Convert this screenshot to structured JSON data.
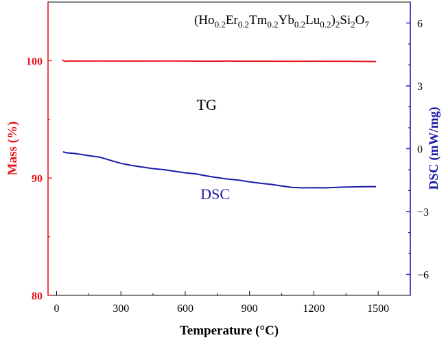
{
  "chart_data": {
    "type": "line",
    "title": "",
    "formula": {
      "parts": [
        {
          "t": "(Ho",
          "s": ""
        },
        {
          "t": "0.2",
          "s": "sub"
        },
        {
          "t": "Er",
          "s": ""
        },
        {
          "t": "0.2",
          "s": "sub"
        },
        {
          "t": "Tm",
          "s": ""
        },
        {
          "t": "0.2",
          "s": "sub"
        },
        {
          "t": "Yb",
          "s": ""
        },
        {
          "t": "0.2",
          "s": "sub"
        },
        {
          "t": "Lu",
          "s": ""
        },
        {
          "t": "0.2",
          "s": "sub"
        },
        {
          "t": ")",
          "s": ""
        },
        {
          "t": "2",
          "s": "sub"
        },
        {
          "t": "Si",
          "s": ""
        },
        {
          "t": "2",
          "s": "sub"
        },
        {
          "t": "O",
          "s": ""
        },
        {
          "t": "7",
          "s": "sub"
        }
      ]
    },
    "xlabel": "Temperature (°C)",
    "ylabel_left": "Mass (%)",
    "ylabel_right": "DSC (mW/mg)",
    "xlim": [
      -40,
      1650
    ],
    "ylim_left": [
      80,
      105
    ],
    "ylim_right": [
      -7,
      7
    ],
    "x_ticks": [
      0,
      300,
      600,
      900,
      1200,
      1500
    ],
    "y_left_ticks": [
      80,
      90,
      100
    ],
    "y_right_ticks": [
      -6,
      -3,
      0,
      3,
      6
    ],
    "y_right_tick_labels": [
      "−6",
      "−3",
      "0",
      "3",
      "6"
    ],
    "colors": {
      "left_axis": "#e8141b",
      "right_axis": "#1a1aa8",
      "axis": "#000000"
    },
    "series": [
      {
        "name": "TG",
        "axis": "left",
        "color": "#e8141b",
        "x": [
          25,
          40,
          60,
          100,
          200,
          300,
          400,
          500,
          600,
          700,
          800,
          900,
          1000,
          1100,
          1200,
          1300,
          1400,
          1490
        ],
        "y": [
          100.05,
          99.95,
          99.98,
          99.97,
          99.98,
          99.97,
          99.97,
          99.98,
          99.97,
          99.96,
          99.97,
          99.96,
          99.96,
          99.95,
          99.96,
          99.95,
          99.95,
          99.93
        ]
      },
      {
        "name": "DSC",
        "axis": "right",
        "color": "#1a1aa8",
        "x": [
          30,
          50,
          80,
          100,
          150,
          200,
          250,
          300,
          350,
          400,
          450,
          500,
          550,
          600,
          650,
          700,
          750,
          800,
          850,
          900,
          950,
          1000,
          1050,
          1100,
          1150,
          1200,
          1250,
          1300,
          1350,
          1400,
          1450,
          1490
        ],
        "y": [
          -0.15,
          -0.2,
          -0.22,
          -0.25,
          -0.33,
          -0.4,
          -0.55,
          -0.7,
          -0.8,
          -0.88,
          -0.95,
          -1.0,
          -1.08,
          -1.15,
          -1.2,
          -1.3,
          -1.38,
          -1.45,
          -1.5,
          -1.58,
          -1.65,
          -1.7,
          -1.78,
          -1.85,
          -1.87,
          -1.86,
          -1.87,
          -1.85,
          -1.83,
          -1.82,
          -1.81,
          -1.81
        ]
      }
    ],
    "annotations": [
      {
        "text": "TG",
        "x": 700,
        "y_left": 95.8,
        "color": "#000000"
      },
      {
        "text": "DSC",
        "x": 740,
        "y_left": 88.2,
        "color": "#1a1aa8"
      }
    ],
    "grid": false,
    "legend": "none"
  }
}
